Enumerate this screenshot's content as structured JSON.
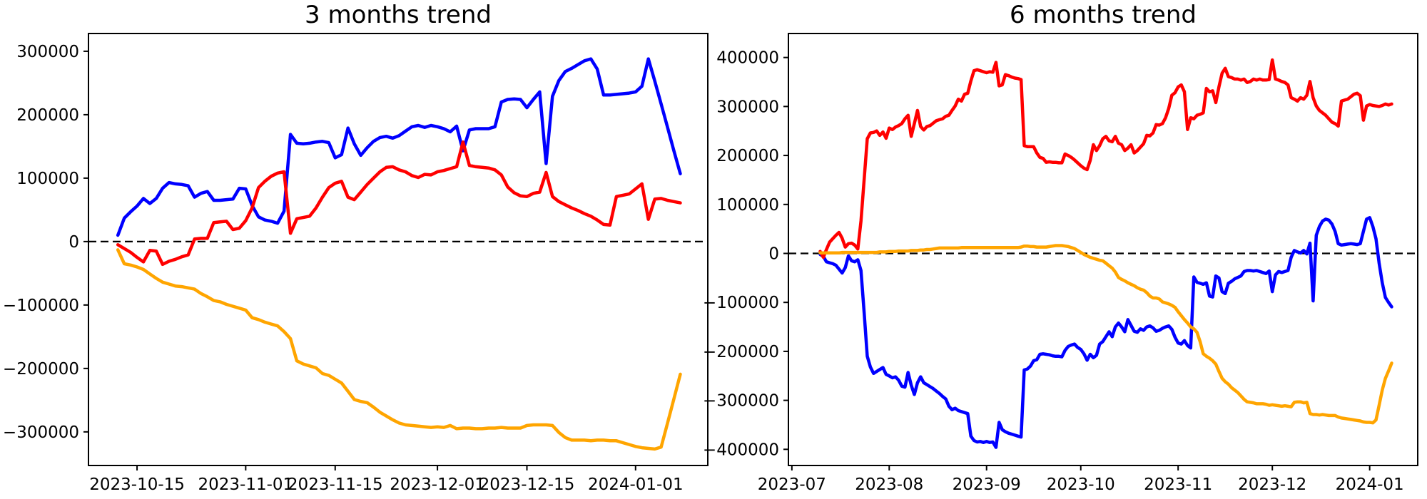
{
  "page": {
    "background": "#ffffff",
    "title_color": "#000000"
  },
  "chart_data": [
    {
      "type": "line",
      "title": "3 months trend",
      "start_date": "2023-10-12",
      "x_unit": "days",
      "grid": false,
      "legend": "none",
      "zero_line": {
        "show": true,
        "color": "#000000",
        "style": "dashed"
      },
      "xlim_days": [
        -4.6,
        92.3
      ],
      "ylim": [
        -353000,
        328000
      ],
      "x_tick_days": [
        3,
        20,
        34,
        50,
        64,
        81
      ],
      "x_tick_labels": [
        "2023-10-15",
        "2023-11-01",
        "2023-11-15",
        "2023-12-01",
        "2023-12-15",
        "2024-01-01"
      ],
      "y_ticks": [
        300000,
        200000,
        100000,
        0,
        -100000,
        -200000,
        -300000
      ],
      "y_tick_labels": [
        "300000",
        "200000",
        "100000",
        "0",
        "−100000",
        "−200000",
        "−300000"
      ],
      "series": [
        {
          "name": "blue",
          "color": "#0000ff",
          "values": [
            10000,
            37000,
            47000,
            56000,
            68000,
            60000,
            68000,
            84000,
            93000,
            91000,
            90000,
            88000,
            70000,
            76000,
            79000,
            65000,
            65000,
            66000,
            67000,
            84000,
            83000,
            57000,
            39000,
            34000,
            32000,
            29000,
            48000,
            169000,
            155000,
            154000,
            155000,
            157000,
            158000,
            156000,
            132000,
            137000,
            179000,
            154000,
            136000,
            148000,
            158000,
            164000,
            166000,
            163000,
            167000,
            174000,
            181000,
            183000,
            180000,
            183000,
            181000,
            178000,
            173000,
            182000,
            143000,
            176000,
            178000,
            178000,
            178000,
            181000,
            220000,
            224000,
            225000,
            224000,
            211000,
            224000,
            236000,
            123000,
            229000,
            254000,
            268000,
            273000,
            279000,
            285000,
            288000,
            272000,
            231000,
            231000,
            232000,
            233000,
            234000,
            236000,
            245000,
            288000,
            253000,
            217000,
            180000,
            143000,
            107000
          ]
        },
        {
          "name": "red",
          "color": "#ff0000",
          "values": [
            -5000,
            -11000,
            -17000,
            -25000,
            -32000,
            -14000,
            -15000,
            -36000,
            -31000,
            -28000,
            -24000,
            -21000,
            4000,
            5000,
            5000,
            30000,
            31000,
            32000,
            19000,
            21000,
            33000,
            53000,
            85000,
            95000,
            103000,
            108000,
            110000,
            13000,
            36000,
            38000,
            40000,
            53000,
            70000,
            85000,
            92000,
            95000,
            70000,
            66000,
            78000,
            90000,
            100000,
            110000,
            117000,
            118000,
            113000,
            110000,
            104000,
            101000,
            106000,
            105000,
            110000,
            112000,
            115000,
            118000,
            157000,
            120000,
            118000,
            117000,
            116000,
            113000,
            105000,
            86000,
            77000,
            72000,
            71000,
            76000,
            78000,
            109000,
            71000,
            63000,
            58000,
            53000,
            49000,
            44000,
            40000,
            34000,
            27000,
            26000,
            71000,
            73000,
            75000,
            83000,
            91000,
            35000,
            67000,
            68000,
            65000,
            63000,
            61000
          ]
        },
        {
          "name": "orange",
          "color": "#ffa500",
          "values": [
            -13000,
            -35000,
            -37000,
            -40000,
            -44000,
            -51000,
            -58000,
            -64000,
            -67000,
            -70000,
            -71000,
            -73000,
            -75000,
            -82000,
            -87000,
            -93000,
            -95000,
            -99000,
            -102000,
            -105000,
            -108000,
            -120000,
            -123000,
            -127000,
            -130000,
            -133000,
            -142000,
            -153000,
            -188000,
            -193000,
            -196000,
            -199000,
            -208000,
            -211000,
            -217000,
            -223000,
            -236000,
            -249000,
            -252000,
            -254000,
            -261000,
            -269000,
            -275000,
            -281000,
            -286000,
            -289000,
            -290000,
            -291000,
            -292000,
            -293000,
            -292000,
            -293000,
            -290000,
            -295000,
            -294000,
            -294000,
            -295000,
            -295000,
            -294000,
            -294000,
            -293000,
            -294000,
            -294000,
            -294000,
            -290000,
            -289000,
            -289000,
            -289000,
            -290000,
            -301000,
            -309000,
            -313000,
            -313000,
            -313000,
            -314000,
            -313000,
            -313000,
            -314000,
            -314000,
            -317000,
            -320000,
            -323000,
            -325000,
            -326000,
            -327000,
            -324000,
            -286000,
            -248000,
            -209000
          ]
        }
      ]
    },
    {
      "type": "line",
      "title": "6 months trend",
      "start_date": "2023-07-10",
      "x_unit": "days",
      "grid": false,
      "legend": "none",
      "zero_line": {
        "show": true,
        "color": "#000000",
        "style": "dashed"
      },
      "xlim_days": [
        -10.1,
        190.3
      ],
      "ylim": [
        -433000,
        449000
      ],
      "x_tick_days": [
        -9,
        22,
        53,
        83,
        114,
        144,
        175
      ],
      "x_tick_labels": [
        "2023-07",
        "2023-08",
        "2023-09",
        "2023-10",
        "2023-11",
        "2023-12",
        "2024-01"
      ],
      "y_ticks": [
        400000,
        300000,
        200000,
        100000,
        0,
        -100000,
        -200000,
        -300000,
        -400000
      ],
      "y_tick_labels": [
        "400000",
        "300000",
        "200000",
        "100000",
        "0",
        "−100000",
        "−200000",
        "−300000",
        "−400000"
      ],
      "series": [
        {
          "name": "blue",
          "color": "#0000ff",
          "values": [
            -2000,
            -6000,
            -17000,
            -19000,
            -21000,
            -24000,
            -32000,
            -40000,
            -29000,
            -5000,
            -15000,
            -17000,
            -13000,
            -35000,
            -120000,
            -210000,
            -232000,
            -245000,
            -241000,
            -237000,
            -233000,
            -247000,
            -250000,
            -254000,
            -252000,
            -259000,
            -271000,
            -273000,
            -243000,
            -269000,
            -288000,
            -264000,
            -252000,
            -264000,
            -268000,
            -272000,
            -276000,
            -281000,
            -286000,
            -292000,
            -297000,
            -312000,
            -319000,
            -316000,
            -321000,
            -323000,
            -325000,
            -327000,
            -373000,
            -382000,
            -385000,
            -384000,
            -386000,
            -384000,
            -386000,
            -385000,
            -396000,
            -345000,
            -360000,
            -364000,
            -367000,
            -369000,
            -371000,
            -373000,
            -375000,
            -238000,
            -236000,
            -230000,
            -219000,
            -217000,
            -206000,
            -205000,
            -206000,
            -207000,
            -209000,
            -210000,
            -210000,
            -211000,
            -198000,
            -190000,
            -187000,
            -185000,
            -192000,
            -196000,
            -205000,
            -218000,
            -206000,
            -213000,
            -208000,
            -185000,
            -180000,
            -170000,
            -160000,
            -170000,
            -150000,
            -142000,
            -150000,
            -160000,
            -135000,
            -147000,
            -159000,
            -161000,
            -154000,
            -157000,
            -150000,
            -148000,
            -152000,
            -159000,
            -157000,
            -153000,
            -150000,
            -148000,
            -155000,
            -171000,
            -183000,
            -185000,
            -178000,
            -188000,
            -193000,
            -48000,
            -59000,
            -61000,
            -63000,
            -60000,
            -87000,
            -89000,
            -46000,
            -50000,
            -78000,
            -82000,
            -61000,
            -57000,
            -52000,
            -49000,
            -46000,
            -37000,
            -35000,
            -35000,
            -36000,
            -35000,
            -37000,
            -39000,
            -41000,
            -36000,
            -78000,
            -44000,
            -37000,
            -39000,
            -37000,
            -35000,
            -8000,
            6000,
            3000,
            1000,
            6000,
            -1000,
            21000,
            -97000,
            37000,
            55000,
            66000,
            70000,
            68000,
            60000,
            45000,
            20000,
            17000,
            18000,
            19000,
            20000,
            19000,
            18000,
            20000,
            45000,
            70000,
            73000,
            55000,
            30000,
            -20000,
            -60000,
            -90000,
            -100000,
            -109000
          ]
        },
        {
          "name": "red",
          "color": "#ff0000",
          "values": [
            4000,
            -8000,
            8000,
            23000,
            30000,
            37000,
            43000,
            31000,
            13000,
            20000,
            21000,
            17000,
            9000,
            66000,
            150000,
            234000,
            246000,
            247000,
            250000,
            241000,
            248000,
            235000,
            256000,
            253000,
            258000,
            261000,
            265000,
            275000,
            282000,
            239000,
            265000,
            292000,
            259000,
            252000,
            259000,
            261000,
            266000,
            271000,
            273000,
            275000,
            280000,
            282000,
            292000,
            301000,
            315000,
            311000,
            325000,
            327000,
            352000,
            373000,
            375000,
            373000,
            371000,
            369000,
            371000,
            370000,
            390000,
            342000,
            344000,
            365000,
            363000,
            360000,
            358000,
            357000,
            355000,
            220000,
            218000,
            218000,
            218000,
            205000,
            196000,
            194000,
            186000,
            187000,
            186000,
            186000,
            185000,
            185000,
            203000,
            200000,
            196000,
            191000,
            185000,
            179000,
            174000,
            171000,
            190000,
            222000,
            210000,
            220000,
            234000,
            239000,
            230000,
            228000,
            239000,
            225000,
            222000,
            210000,
            215000,
            222000,
            205000,
            210000,
            217000,
            224000,
            241000,
            240000,
            246000,
            263000,
            262000,
            265000,
            277000,
            296000,
            323000,
            328000,
            340000,
            344000,
            330000,
            253000,
            277000,
            275000,
            282000,
            284000,
            287000,
            337000,
            330000,
            332000,
            308000,
            340000,
            368000,
            378000,
            361000,
            359000,
            356000,
            356000,
            354000,
            356000,
            349000,
            351000,
            356000,
            354000,
            356000,
            354000,
            354000,
            355000,
            395000,
            356000,
            354000,
            351000,
            349000,
            344000,
            318000,
            315000,
            311000,
            318000,
            315000,
            323000,
            351000,
            318000,
            301000,
            292000,
            287000,
            282000,
            275000,
            268000,
            265000,
            260000,
            311000,
            313000,
            315000,
            320000,
            325000,
            327000,
            322000,
            272000,
            301000,
            304000,
            302000,
            301000,
            300000,
            302000,
            305000,
            303000,
            305000
          ]
        },
        {
          "name": "orange",
          "color": "#ffa500",
          "values": [
            1000,
            1000,
            1000,
            1000,
            1000,
            1000,
            1000,
            2000,
            2000,
            2000,
            2000,
            2000,
            2000,
            2000,
            2000,
            2000,
            2000,
            2000,
            2000,
            3000,
            3000,
            3000,
            4000,
            4000,
            4000,
            5000,
            5000,
            5000,
            5000,
            6000,
            6000,
            6000,
            7000,
            7000,
            8000,
            8000,
            9000,
            10000,
            11000,
            11000,
            11000,
            11000,
            11000,
            11000,
            11000,
            12000,
            12000,
            12000,
            12000,
            12000,
            12000,
            12000,
            12000,
            12000,
            12000,
            12000,
            12000,
            12000,
            12000,
            12000,
            12000,
            12000,
            12000,
            12000,
            13000,
            15000,
            15000,
            14000,
            14000,
            13000,
            13000,
            13000,
            13000,
            14000,
            15000,
            16000,
            16000,
            16000,
            15000,
            14000,
            12000,
            10000,
            6000,
            2000,
            -2000,
            -5000,
            -8000,
            -10000,
            -12000,
            -14000,
            -15000,
            -20000,
            -25000,
            -30000,
            -38000,
            -49000,
            -53000,
            -56000,
            -60000,
            -63000,
            -66000,
            -70000,
            -73000,
            -75000,
            -80000,
            -87000,
            -91000,
            -91000,
            -93000,
            -99000,
            -101000,
            -103000,
            -106000,
            -110000,
            -119000,
            -127000,
            -135000,
            -142000,
            -150000,
            -154000,
            -161000,
            -180000,
            -205000,
            -210000,
            -214000,
            -219000,
            -226000,
            -241000,
            -255000,
            -262000,
            -267000,
            -274000,
            -279000,
            -284000,
            -291000,
            -298000,
            -303000,
            -304000,
            -305000,
            -307000,
            -307000,
            -307000,
            -308000,
            -310000,
            -309000,
            -310000,
            -311000,
            -312000,
            -311000,
            -312000,
            -313000,
            -304000,
            -303000,
            -303000,
            -305000,
            -304000,
            -327000,
            -329000,
            -329000,
            -330000,
            -329000,
            -330000,
            -331000,
            -331000,
            -331000,
            -334000,
            -336000,
            -337000,
            -338000,
            -339000,
            -340000,
            -341000,
            -342000,
            -344000,
            -345000,
            -345000,
            -346000,
            -340000,
            -310000,
            -279000,
            -255000,
            -240000,
            -224000
          ]
        }
      ]
    }
  ]
}
